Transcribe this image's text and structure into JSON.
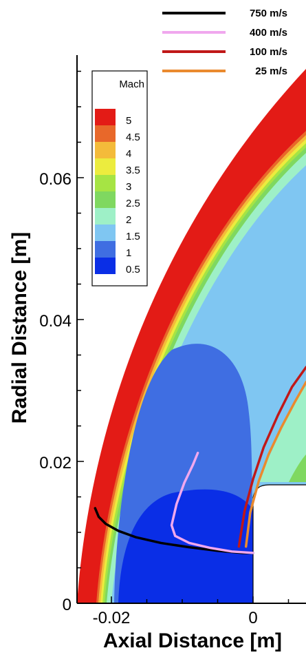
{
  "chart_data": {
    "type": "line",
    "title": "",
    "xlabel": "Axial Distance [m]",
    "ylabel": "Radial Distance [m]",
    "x_ticks": [
      -0.02,
      0
    ],
    "x_tick_labels": [
      "-0.02",
      "0"
    ],
    "y_ticks": [
      0,
      0.02,
      0.04,
      0.06
    ],
    "y_tick_labels": [
      "0",
      "0.02",
      "0.04",
      "0.06"
    ],
    "xlim": [
      -0.0245,
      0.0075
    ],
    "ylim": [
      0,
      0.0758
    ],
    "colorbar": {
      "title": "Mach",
      "levels": [
        "5",
        "4.5",
        "4",
        "3.5",
        "3",
        "2.5",
        "2",
        "1.5",
        "1",
        "0.5"
      ],
      "colors": [
        "#e31b16",
        "#e8682a",
        "#f4bb3a",
        "#ecec3e",
        "#a6e444",
        "#7fd860",
        "#9ef0c7",
        "#7fc6f2",
        "#3f6ee2",
        "#0a2ee6"
      ]
    },
    "series": [
      {
        "name": "750 m/s",
        "color": "#000000",
        "x": [
          -0.0223,
          -0.0218,
          -0.0208,
          -0.019,
          -0.0165,
          -0.013,
          -0.009,
          -0.005,
          -0.0015,
          0.0
        ],
        "y": [
          0.0134,
          0.0122,
          0.0112,
          0.0102,
          0.0093,
          0.0085,
          0.0079,
          0.0074,
          0.0071,
          0.0071
        ]
      },
      {
        "name": "400 m/s",
        "color": "#f0a8ee",
        "x": [
          -0.0078,
          -0.0085,
          -0.0097,
          -0.0108,
          -0.0115,
          -0.011,
          -0.009,
          -0.006,
          -0.003,
          0.0
        ],
        "y": [
          0.0212,
          0.0195,
          0.017,
          0.014,
          0.011,
          0.0095,
          0.0085,
          0.0078,
          0.0073,
          0.0071
        ]
      },
      {
        "name": "100 m/s",
        "color": "#c01818",
        "x": [
          -0.002,
          -0.0012,
          0.0,
          0.0015,
          0.0035,
          0.0055,
          0.0075
        ],
        "y": [
          0.008,
          0.013,
          0.0175,
          0.022,
          0.0265,
          0.0305,
          0.0333
        ]
      },
      {
        "name": "25 m/s",
        "color": "#ea8a2e",
        "x": [
          -0.001,
          -0.0004,
          0.0008,
          0.0022,
          0.004,
          0.0058,
          0.0075
        ],
        "y": [
          0.008,
          0.0128,
          0.0172,
          0.021,
          0.0248,
          0.0282,
          0.0312
        ]
      }
    ]
  }
}
